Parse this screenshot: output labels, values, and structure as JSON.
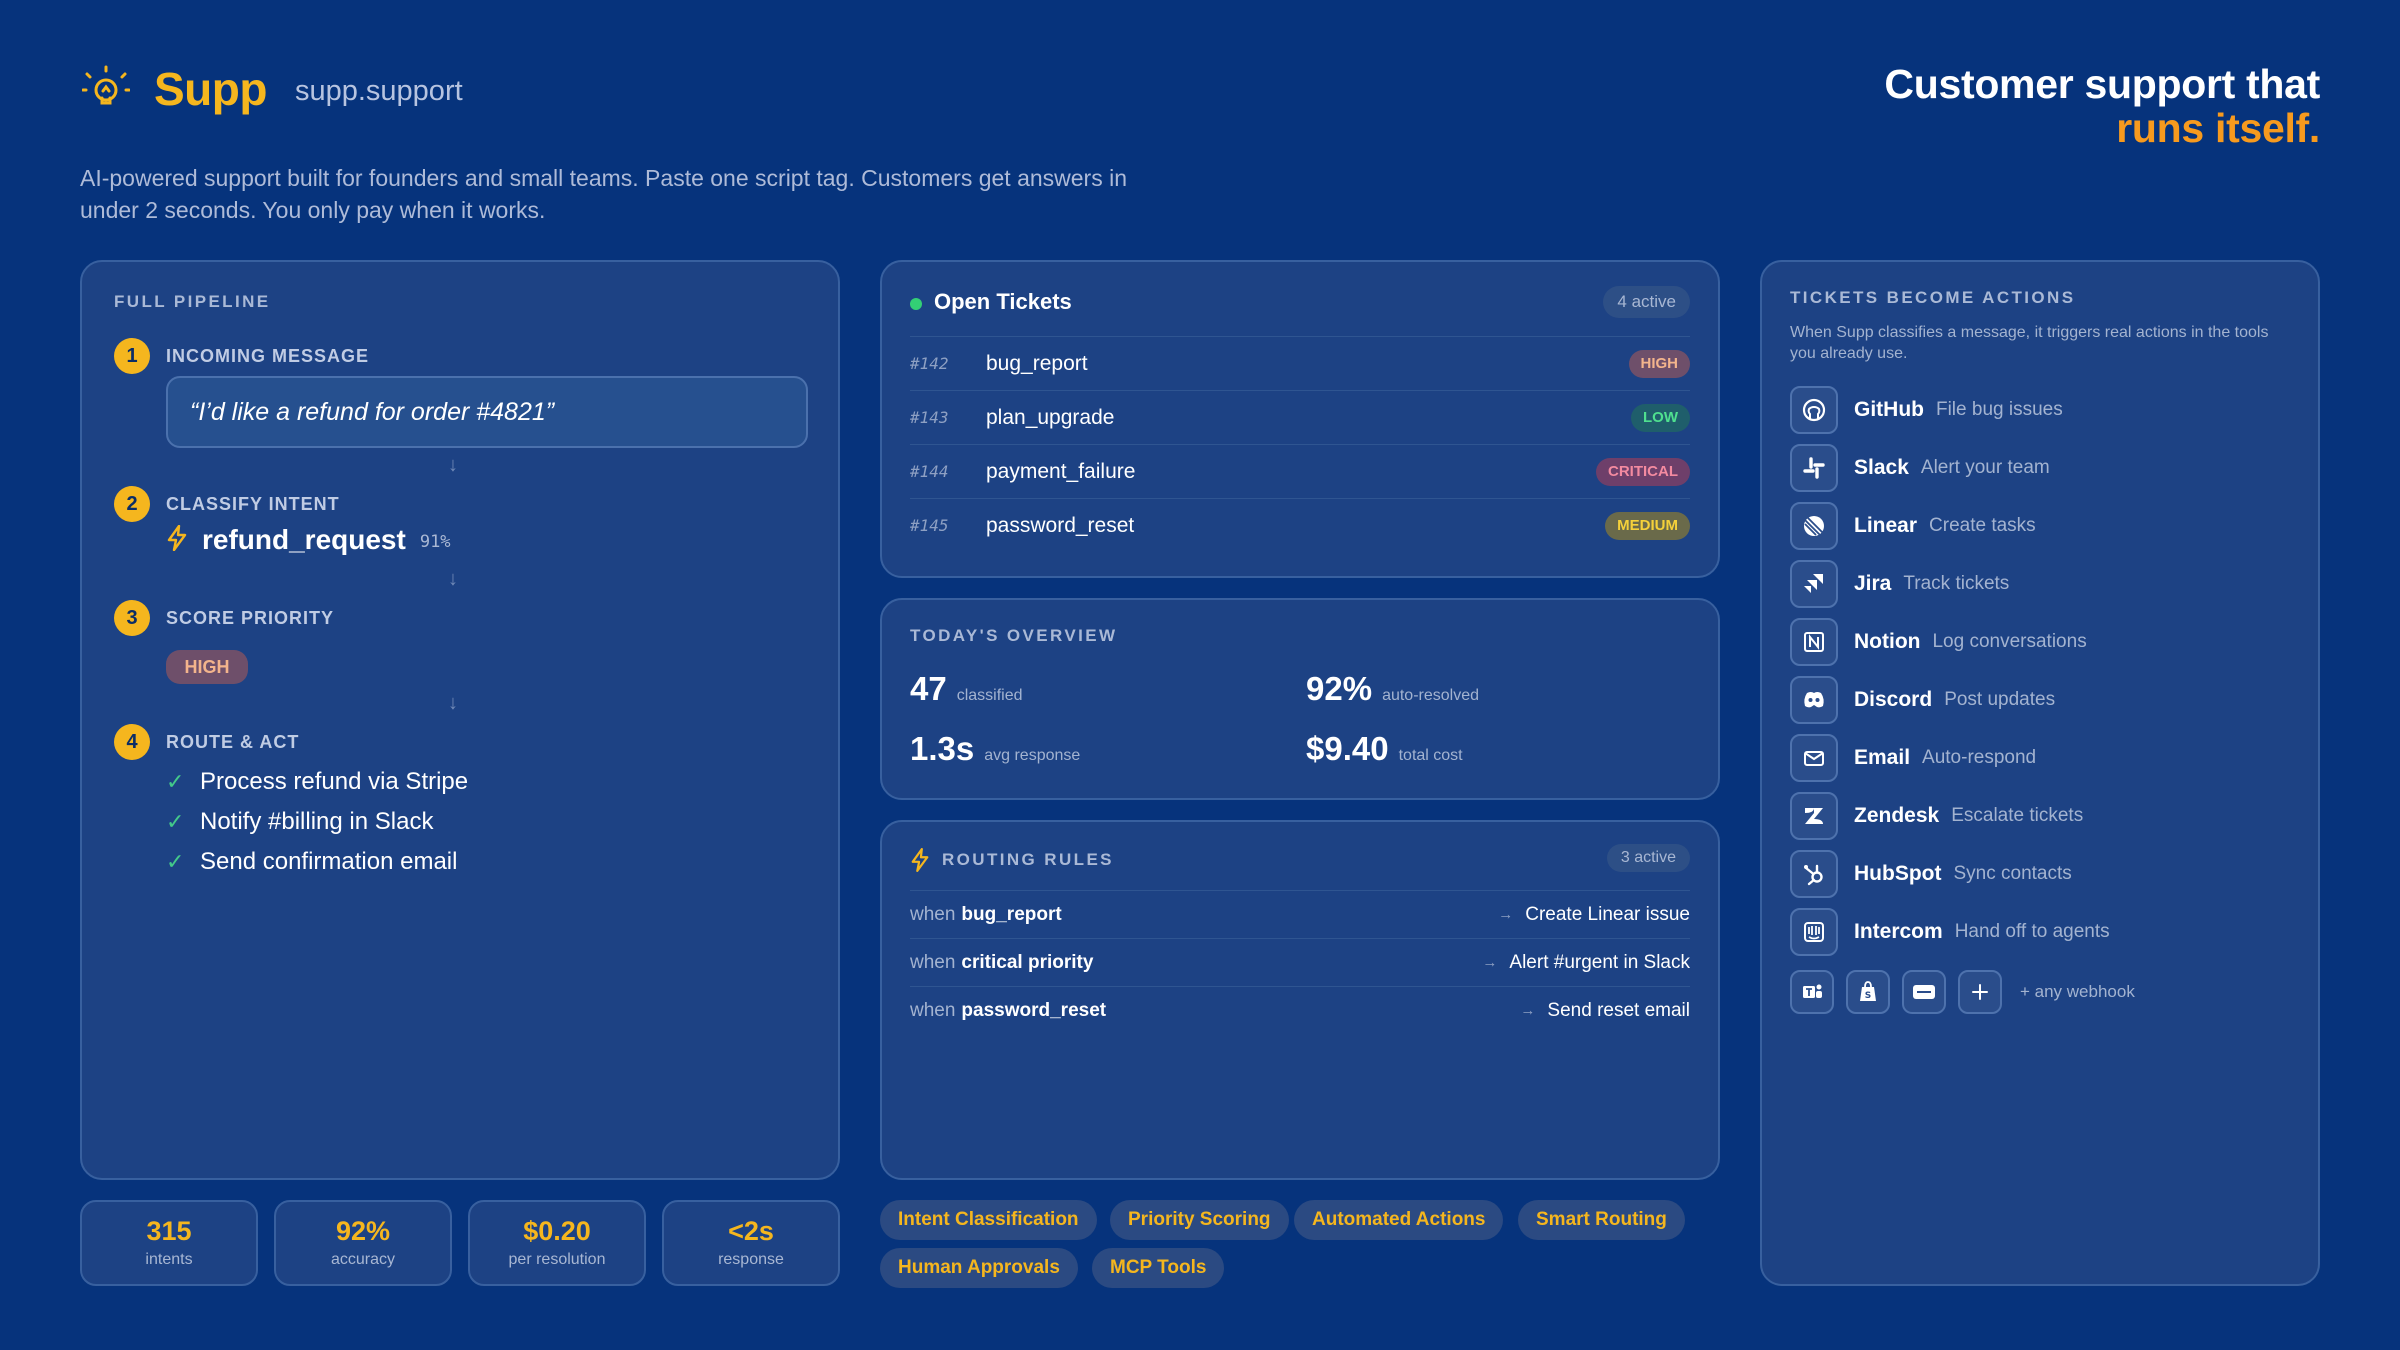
{
  "brand": {
    "name": "Supp",
    "domain": "supp.support",
    "icon": "lightbulb-icon"
  },
  "headline": {
    "line1": "Customer support that",
    "line2": "runs itself."
  },
  "tagline": "AI-powered support built for founders and small teams. Paste one script tag. Customers get answers in under 2 seconds. You only pay when it works.",
  "pipeline": {
    "title": "FULL PIPELINE",
    "steps": [
      {
        "num": "1",
        "label": "INCOMING MESSAGE",
        "message": "“I’d like a refund for order #4821”"
      },
      {
        "num": "2",
        "label": "CLASSIFY INTENT",
        "intent": "refund_request",
        "confidence": "91%"
      },
      {
        "num": "3",
        "label": "SCORE PRIORITY",
        "priority": "HIGH"
      },
      {
        "num": "4",
        "label": "ROUTE & ACT",
        "actions": [
          "Process refund via Stripe",
          "Notify #billing in Slack",
          "Send confirmation email"
        ]
      }
    ]
  },
  "stats": [
    {
      "value": "315",
      "label": "intents"
    },
    {
      "value": "92%",
      "label": "accuracy"
    },
    {
      "value": "$0.20",
      "label": "per resolution"
    },
    {
      "value": "<2s",
      "label": "response"
    }
  ],
  "tickets": {
    "title": "Open Tickets",
    "count": "4 active",
    "rows": [
      {
        "id": "#142",
        "name": "bug_report",
        "severity": "HIGH"
      },
      {
        "id": "#143",
        "name": "plan_upgrade",
        "severity": "LOW"
      },
      {
        "id": "#144",
        "name": "payment_failure",
        "severity": "CRITICAL"
      },
      {
        "id": "#145",
        "name": "password_reset",
        "severity": "MEDIUM"
      }
    ],
    "severity_colors": {
      "HIGH": {
        "bg": "#6e4f6a",
        "fg": "#f3b48c"
      },
      "LOW": {
        "bg": "#1f5e6b",
        "fg": "#4fe08f"
      },
      "CRITICAL": {
        "bg": "#6e3f6a",
        "fg": "#f38aa0"
      },
      "MEDIUM": {
        "bg": "#6a6a4a",
        "fg": "#f5d13a"
      }
    }
  },
  "overview": {
    "title": "TODAY'S OVERVIEW",
    "items": [
      {
        "value": "47",
        "label": "classified"
      },
      {
        "value": "92%",
        "label": "auto-resolved"
      },
      {
        "value": "1.3s",
        "label": "avg response"
      },
      {
        "value": "$9.40",
        "label": "total cost"
      }
    ]
  },
  "routing": {
    "title": "ROUTING RULES",
    "count": "3 active",
    "when_label": "when",
    "rules": [
      {
        "condition": "bug_report",
        "action": "Create Linear issue"
      },
      {
        "condition": "critical priority",
        "action": "Alert #urgent in Slack"
      },
      {
        "condition": "password_reset",
        "action": "Send reset email"
      }
    ]
  },
  "features": [
    "Intent Classification",
    "Priority Scoring",
    "Automated Actions",
    "Smart Routing",
    "Human Approvals",
    "MCP Tools"
  ],
  "integrations": {
    "title": "TICKETS BECOME ACTIONS",
    "description": "When Supp classifies a message, it triggers real actions in the tools you already use.",
    "items": [
      {
        "name": "GitHub",
        "action": "File bug issues",
        "icon": "github-icon"
      },
      {
        "name": "Slack",
        "action": "Alert your team",
        "icon": "slack-icon"
      },
      {
        "name": "Linear",
        "action": "Create tasks",
        "icon": "linear-icon"
      },
      {
        "name": "Jira",
        "action": "Track tickets",
        "icon": "jira-icon"
      },
      {
        "name": "Notion",
        "action": "Log conversations",
        "icon": "notion-icon"
      },
      {
        "name": "Discord",
        "action": "Post updates",
        "icon": "discord-icon"
      },
      {
        "name": "Email",
        "action": "Auto-respond",
        "icon": "email-icon"
      },
      {
        "name": "Zendesk",
        "action": "Escalate tickets",
        "icon": "zendesk-icon"
      },
      {
        "name": "HubSpot",
        "action": "Sync contacts",
        "icon": "hubspot-icon"
      },
      {
        "name": "Intercom",
        "action": "Hand off to agents",
        "icon": "intercom-icon"
      }
    ],
    "extra_icons": [
      "teams-icon",
      "shopify-icon",
      "zapier-icon",
      "plus-icon"
    ],
    "webhook_label": "+ any webhook"
  },
  "colors": {
    "background": "#06337c",
    "panel": "#1d4284",
    "accent": "#f5b61e",
    "orange": "#f79a1e",
    "success": "#43c98a"
  }
}
